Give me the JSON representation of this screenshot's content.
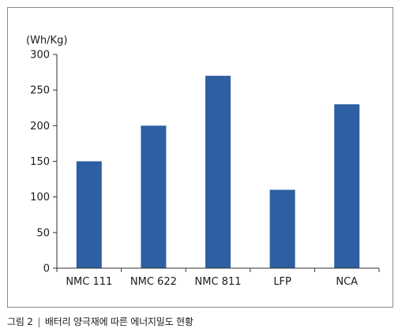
{
  "chart_data": {
    "type": "bar",
    "unit_label": "(Wh/Kg)",
    "categories": [
      "NMC 111",
      "NMC 622",
      "NMC 811",
      "LFP",
      "NCA"
    ],
    "values": [
      150,
      200,
      270,
      110,
      230
    ],
    "ylim": [
      0,
      300
    ],
    "yticks": [
      0,
      50,
      100,
      150,
      200,
      250,
      300
    ],
    "grid": false,
    "legend": "none",
    "bar_color": "#2f5fa3"
  },
  "caption": {
    "figure_label": "그림 2",
    "separator": "|",
    "text": "배터리 양극재에 따른 에너지밀도 현황"
  }
}
